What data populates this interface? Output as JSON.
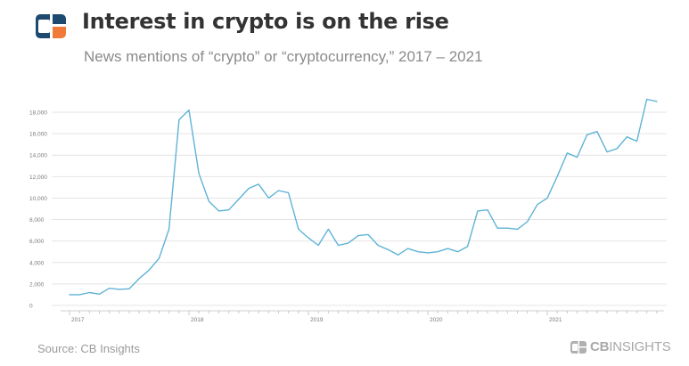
{
  "header": {
    "title": "Interest in crypto is on the rise",
    "subtitle": "News mentions of “crypto” or “cryptocurrency,” 2017 – 2021",
    "logo_name": "cb-insights-logo-icon"
  },
  "footer": {
    "source": "Source: CB Insights",
    "brand_bold": "CB",
    "brand_rest": "INSIGHTS"
  },
  "colors": {
    "line": "#5fb3d6",
    "grid": "#e4e4e4",
    "logo_blue": "#1d4a6e",
    "logo_orange": "#f07a3a"
  },
  "chart_data": {
    "type": "line",
    "title": "Interest in crypto is on the rise",
    "subtitle": "News mentions of “crypto” or “cryptocurrency,” 2017 – 2021",
    "xlabel": "",
    "ylabel": "",
    "ylim": [
      0,
      18000
    ],
    "xlim": [
      2017.0,
      2021.92
    ],
    "grid": true,
    "y_ticks": [
      0,
      2000,
      4000,
      6000,
      8000,
      10000,
      12000,
      14000,
      16000,
      18000
    ],
    "y_tick_labels": [
      "0",
      "2,000",
      "4,000",
      "6,000",
      "8,000",
      "10,000",
      "12,000",
      "14,000",
      "16,000",
      "18,000"
    ],
    "x_ticks": [
      2017,
      2018,
      2019,
      2020,
      2021
    ],
    "x_tick_labels": [
      "2017",
      "2018",
      "2019",
      "2020",
      "2021"
    ],
    "series": [
      {
        "name": "News mentions",
        "x": [
          2017.0,
          2017.083,
          2017.167,
          2017.25,
          2017.333,
          2017.417,
          2017.5,
          2017.583,
          2017.667,
          2017.75,
          2017.833,
          2017.917,
          2018.0,
          2018.083,
          2018.167,
          2018.25,
          2018.333,
          2018.417,
          2018.5,
          2018.583,
          2018.667,
          2018.75,
          2018.833,
          2018.917,
          2019.0,
          2019.083,
          2019.167,
          2019.25,
          2019.333,
          2019.417,
          2019.5,
          2019.583,
          2019.667,
          2019.75,
          2019.833,
          2019.917,
          2020.0,
          2020.083,
          2020.167,
          2020.25,
          2020.333,
          2020.417,
          2020.5,
          2020.583,
          2020.667,
          2020.75,
          2020.833,
          2020.917,
          2021.0,
          2021.083,
          2021.167,
          2021.25,
          2021.333,
          2021.417,
          2021.5,
          2021.583,
          2021.667,
          2021.75,
          2021.833,
          2021.917
        ],
        "values": [
          1000,
          1000,
          1200,
          1050,
          1600,
          1500,
          1550,
          2500,
          3300,
          4400,
          7100,
          17300,
          18200,
          12300,
          9700,
          8800,
          8900,
          9900,
          10900,
          11300,
          10000,
          10700,
          10500,
          7100,
          6300,
          5600,
          7100,
          5600,
          5800,
          6500,
          6600,
          5600,
          5200,
          4700,
          5300,
          5000,
          4900,
          5000,
          5300,
          5000,
          5500,
          8800,
          8900,
          7200,
          7200,
          7100,
          7800,
          9400,
          10000,
          12000,
          14200,
          13800,
          15900,
          16200,
          14300,
          14600,
          15700,
          15300,
          19200,
          19000
        ]
      }
    ]
  }
}
